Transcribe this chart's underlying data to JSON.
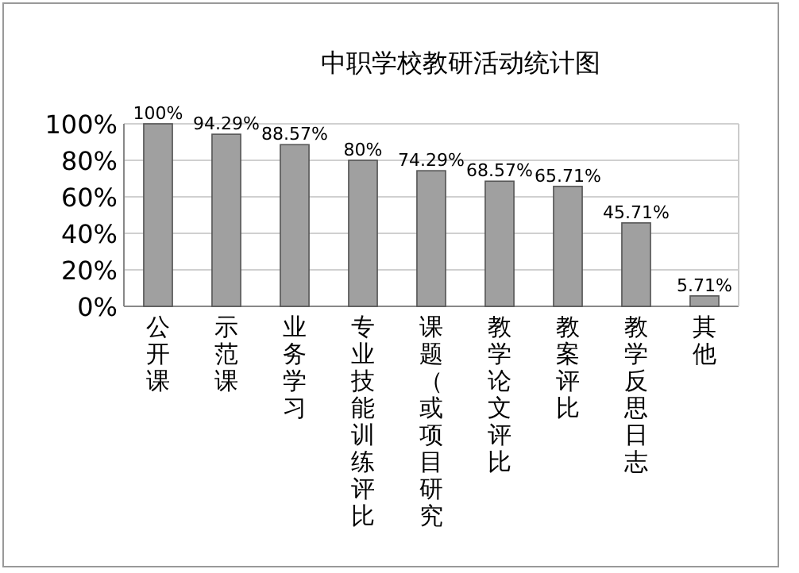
{
  "chart_data": {
    "type": "bar",
    "title": "中职学校教研活动统计图",
    "categories": [
      "公开课",
      "示范课",
      "业务学习",
      "专业技能训练评比",
      "课题（或项目研究",
      "教学论文评比",
      "教案评比",
      "教学反思日志",
      "其他"
    ],
    "values": [
      100,
      94.29,
      88.57,
      80,
      74.29,
      68.57,
      65.71,
      45.71,
      5.71
    ],
    "value_labels": [
      "100%",
      "94.29%",
      "88.57%",
      "80%",
      "74.29%",
      "68.57%",
      "65.71%",
      "45.71%",
      "5.71%"
    ],
    "color": "#a0a0a0",
    "ylim": [
      0,
      100
    ],
    "yticks": [
      {
        "value": 0,
        "label": "0%"
      },
      {
        "value": 20,
        "label": "20%"
      },
      {
        "value": 40,
        "label": "40%"
      },
      {
        "value": 60,
        "label": "60%"
      },
      {
        "value": 80,
        "label": "80%"
      },
      {
        "value": 100,
        "label": "100%"
      }
    ],
    "grid": "y"
  }
}
